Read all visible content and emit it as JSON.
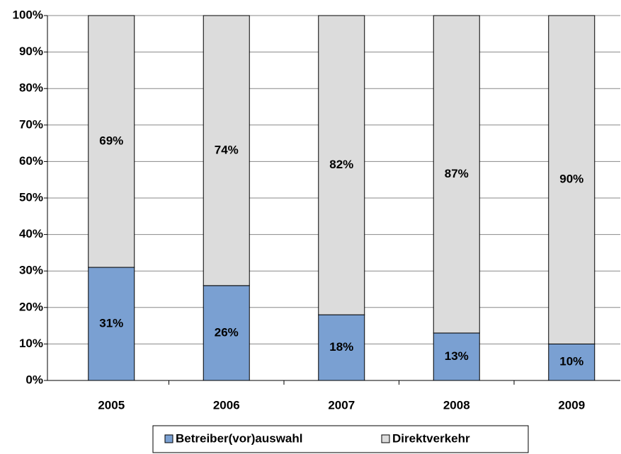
{
  "chart_data": {
    "type": "stacked_bar",
    "categories": [
      "2005",
      "2006",
      "2007",
      "2008",
      "2009"
    ],
    "series": [
      {
        "name": "Betreiber(vor)auswahl",
        "color": "#7aa0d2",
        "values": [
          31,
          26,
          18,
          13,
          10
        ],
        "value_labels": [
          "31%",
          "26%",
          "18%",
          "13%",
          "10%"
        ]
      },
      {
        "name": "Direktverkehr",
        "color": "#dcdcdc",
        "values": [
          69,
          74,
          82,
          87,
          90
        ],
        "value_labels": [
          "69%",
          "74%",
          "82%",
          "87%",
          "90%"
        ]
      }
    ],
    "ylim": [
      0,
      100
    ],
    "yticks": [
      {
        "value": 0,
        "label": "0%"
      },
      {
        "value": 10,
        "label": "10%"
      },
      {
        "value": 20,
        "label": "20%"
      },
      {
        "value": 30,
        "label": "30%"
      },
      {
        "value": 40,
        "label": "40%"
      },
      {
        "value": 50,
        "label": "50%"
      },
      {
        "value": 60,
        "label": "60%"
      },
      {
        "value": 70,
        "label": "70%"
      },
      {
        "value": 80,
        "label": "80%"
      },
      {
        "value": 90,
        "label": "90%"
      },
      {
        "value": 100,
        "label": "100%"
      }
    ],
    "grid": true,
    "legend": "bottom"
  }
}
